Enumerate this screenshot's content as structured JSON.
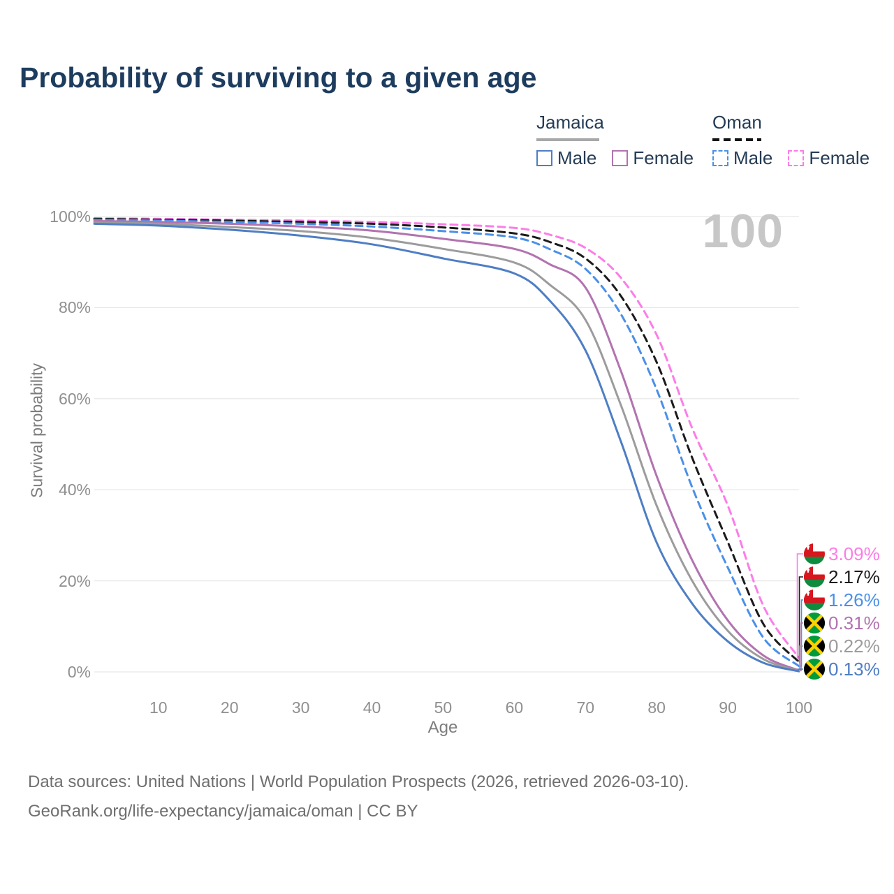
{
  "title": "Probability of surviving to a given age",
  "watermark": "100",
  "legend": {
    "groups": [
      {
        "country": "Jamaica",
        "line_style": "solid",
        "underline_color": "#a8a8a8",
        "items": [
          {
            "label": "Male",
            "color": "#4e7ec4",
            "dashed": false
          },
          {
            "label": "Female",
            "color": "#b273b0",
            "dashed": false
          }
        ]
      },
      {
        "country": "Oman",
        "line_style": "dashed",
        "underline_color": "#141414",
        "items": [
          {
            "label": "Male",
            "color": "#4a90e8",
            "dashed": true
          },
          {
            "label": "Female",
            "color": "#fc7de8",
            "dashed": true
          }
        ]
      }
    ]
  },
  "chart_data": {
    "type": "line",
    "title": "Probability of surviving to a given age",
    "xlabel": "Age",
    "ylabel": "Survival probability",
    "xlim": [
      0,
      100
    ],
    "ylim": [
      0,
      100
    ],
    "grid": "horizontal",
    "legend_position": "top-right",
    "x_ticks": [
      10,
      20,
      30,
      40,
      50,
      60,
      70,
      80,
      90,
      100
    ],
    "y_ticks": [
      {
        "value": 100,
        "label": "100%"
      },
      {
        "value": 80,
        "label": "80%"
      },
      {
        "value": 60,
        "label": "60%"
      },
      {
        "value": 40,
        "label": "40%"
      },
      {
        "value": 20,
        "label": "20%"
      },
      {
        "value": 0,
        "label": "0%"
      }
    ],
    "x": [
      1,
      10,
      20,
      30,
      40,
      50,
      60,
      65,
      70,
      75,
      80,
      85,
      90,
      95,
      100
    ],
    "series": [
      {
        "name": "Oman Female",
        "country": "Oman",
        "sex": "Female",
        "flag": "oman",
        "color": "#fc7de8",
        "dashed": true,
        "end_label": "3.09%",
        "values": [
          99.6,
          99.5,
          99.3,
          99.1,
          98.8,
          98.3,
          97.5,
          96.0,
          93.1,
          86.5,
          74.0,
          53.5,
          36.5,
          14.5,
          3.09
        ]
      },
      {
        "name": "Oman",
        "country": "Oman",
        "sex": "Both",
        "flag": "oman",
        "color": "#1b1b1b",
        "dashed": true,
        "end_label": "2.17%",
        "values": [
          99.5,
          99.3,
          99.1,
          98.8,
          98.4,
          97.6,
          96.3,
          94.4,
          90.8,
          82.5,
          68.0,
          47.0,
          28.5,
          10.5,
          2.17
        ]
      },
      {
        "name": "Oman Male",
        "country": "Oman",
        "sex": "Male",
        "flag": "oman",
        "color": "#4a90e8",
        "dashed": true,
        "end_label": "1.26%",
        "values": [
          99.3,
          99.1,
          98.8,
          98.4,
          97.8,
          96.8,
          95.4,
          92.8,
          88.5,
          78.5,
          62.0,
          40.5,
          22.9,
          7.5,
          1.26
        ]
      },
      {
        "name": "Jamaica Female",
        "country": "Jamaica",
        "sex": "Female",
        "flag": "jamaica",
        "color": "#b273b0",
        "dashed": false,
        "end_label": "0.31%",
        "values": [
          99.0,
          98.8,
          98.4,
          97.8,
          96.9,
          95.1,
          92.9,
          89.5,
          84.4,
          66.0,
          43.0,
          24.5,
          11.3,
          3.6,
          0.31
        ]
      },
      {
        "name": "Jamaica",
        "country": "Jamaica",
        "sex": "Both",
        "flag": "jamaica",
        "color": "#9c9c9c",
        "dashed": false,
        "end_label": "0.22%",
        "values": [
          98.7,
          98.4,
          97.7,
          96.8,
          95.3,
          92.9,
          89.9,
          85.0,
          77.3,
          58.5,
          36.5,
          20.0,
          9.0,
          2.8,
          0.22
        ]
      },
      {
        "name": "Jamaica Male",
        "country": "Jamaica",
        "sex": "Male",
        "flag": "jamaica",
        "color": "#4e7ec4",
        "dashed": false,
        "end_label": "0.13%",
        "values": [
          98.4,
          98.0,
          97.1,
          95.8,
          93.9,
          90.8,
          87.5,
          81.5,
          70.6,
          50.5,
          28.4,
          15.0,
          6.7,
          2.0,
          0.13
        ]
      }
    ]
  },
  "footer": {
    "line1": "Data sources: United Nations | World Population Prospects (2026, retrieved 2026-03-10).",
    "line2": "GeoRank.org/life-expectancy/jamaica/oman | CC BY"
  }
}
